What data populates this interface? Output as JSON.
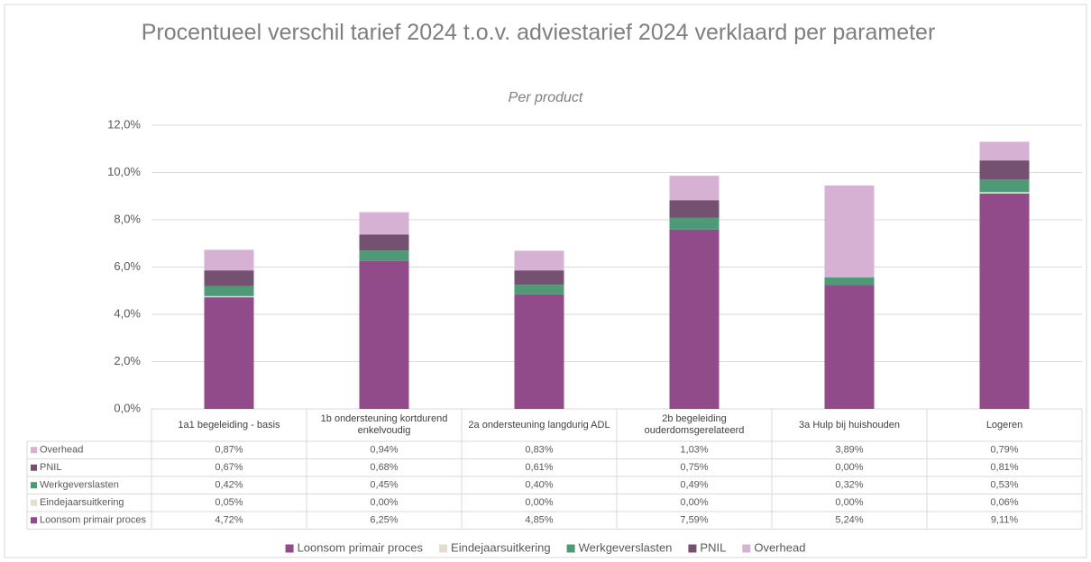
{
  "chart_data": {
    "type": "bar",
    "stacked": true,
    "title": "Procentueel verschil tarief 2024 t.o.v. adviestarief 2024 verklaard per parameter",
    "subtitle": "Per product",
    "categories": [
      "1a1 begeleiding - basis",
      "1b ondersteuning kortdurend enkelvoudig",
      "2a ondersteuning langdurig ADL",
      "2b begeleiding ouderdomsgerelateerd",
      "3a Hulp bij huishouden",
      "Logeren"
    ],
    "series": [
      {
        "name": "Loonsom primair proces",
        "color": "#914a8a",
        "values": [
          4.72,
          6.25,
          4.85,
          7.59,
          5.24,
          9.11
        ],
        "value_labels": [
          "4,72%",
          "6,25%",
          "4,85%",
          "7,59%",
          "5,24%",
          "9,11%"
        ]
      },
      {
        "name": "Eindejaarsuitkering",
        "color": "#e2dfd0",
        "values": [
          0.05,
          0.0,
          0.0,
          0.0,
          0.0,
          0.06
        ],
        "value_labels": [
          "0,05%",
          "0,00%",
          "0,00%",
          "0,00%",
          "0,00%",
          "0,06%"
        ]
      },
      {
        "name": "Werkgeverslasten",
        "color": "#4e9a77",
        "values": [
          0.42,
          0.45,
          0.4,
          0.49,
          0.32,
          0.53
        ],
        "value_labels": [
          "0,42%",
          "0,45%",
          "0,40%",
          "0,49%",
          "0,32%",
          "0,53%"
        ]
      },
      {
        "name": "PNIL",
        "color": "#745170",
        "values": [
          0.67,
          0.68,
          0.61,
          0.75,
          0.0,
          0.81
        ],
        "value_labels": [
          "0,67%",
          "0,68%",
          "0,61%",
          "0,75%",
          "0,00%",
          "0,81%"
        ]
      },
      {
        "name": "Overhead",
        "color": "#d7b1d3",
        "values": [
          0.87,
          0.94,
          0.83,
          1.03,
          3.89,
          0.79
        ],
        "value_labels": [
          "0,87%",
          "0,94%",
          "0,83%",
          "1,03%",
          "3,89%",
          "0,79%"
        ]
      }
    ],
    "ylim": [
      0,
      12
    ],
    "yticks": [
      {
        "value": 0,
        "label": "0,0%"
      },
      {
        "value": 2,
        "label": "2,0%"
      },
      {
        "value": 4,
        "label": "4,0%"
      },
      {
        "value": 6,
        "label": "6,0%"
      },
      {
        "value": 8,
        "label": "8,0%"
      },
      {
        "value": 10,
        "label": "10,0%"
      },
      {
        "value": 12,
        "label": "12,0%"
      }
    ],
    "grid": true,
    "legend": "bottom"
  }
}
